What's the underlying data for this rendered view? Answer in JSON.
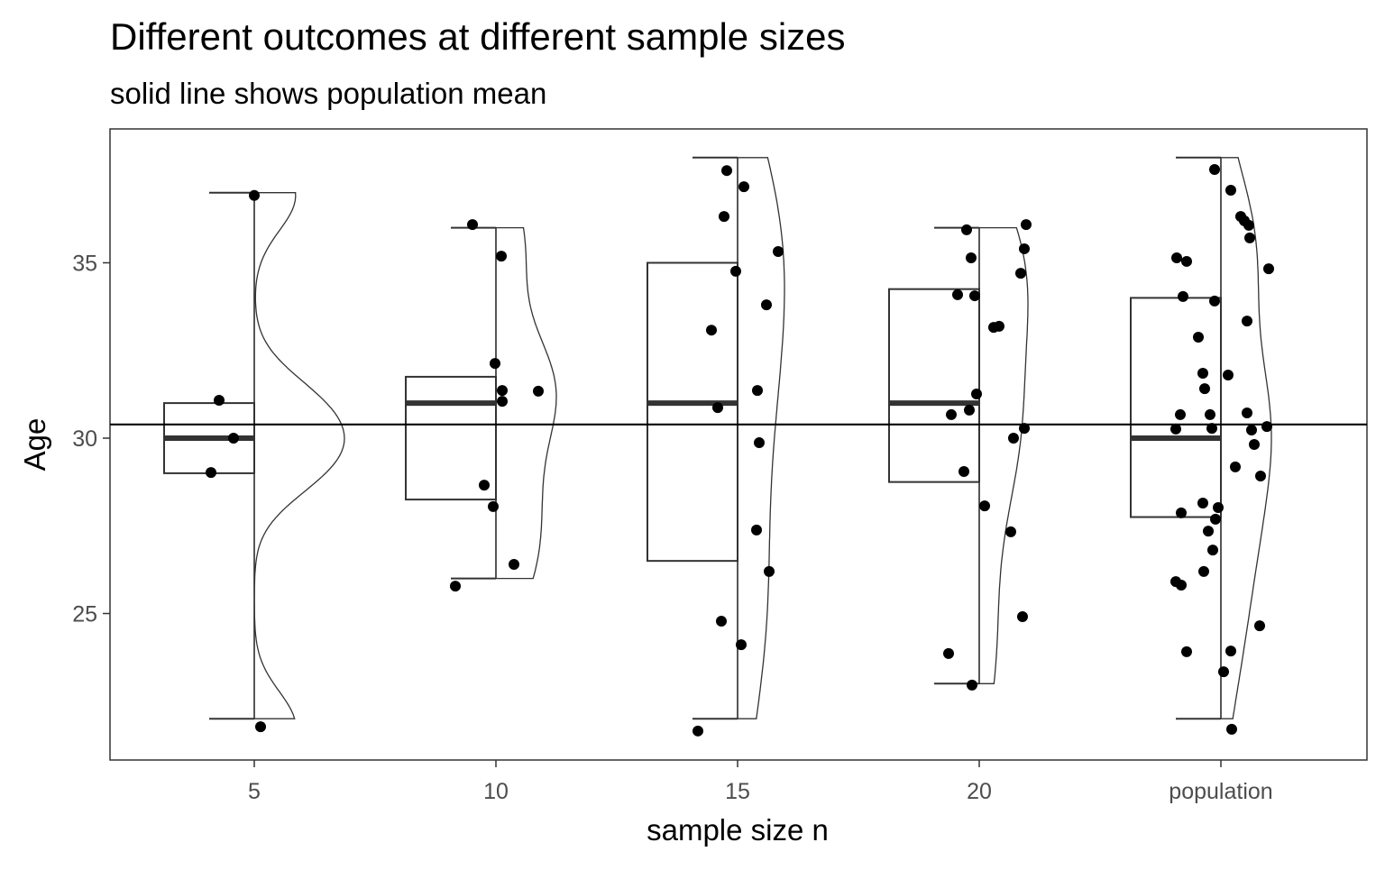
{
  "chart_data": {
    "type": "raincloud",
    "title": "Different outcomes at different sample sizes",
    "subtitle": "solid line shows population mean",
    "xlabel": "sample size n",
    "ylabel": "Age",
    "ylim": [
      20.75,
      38.75
    ],
    "yticks": [
      25,
      30,
      35
    ],
    "ytick_labels": [
      "25",
      "30",
      "35"
    ],
    "categories": [
      "5",
      "10",
      "15",
      "20",
      "population"
    ],
    "population_mean": 30.39,
    "grid": false,
    "boxes": [
      {
        "q1": 29.0,
        "median": 30.0,
        "q3": 31.0,
        "lower": 22.0,
        "upper": 37.0
      },
      {
        "q1": 28.25,
        "median": 31.0,
        "q3": 31.75,
        "lower": 26.0,
        "upper": 36.0
      },
      {
        "q1": 26.5,
        "median": 31.0,
        "q3": 35.0,
        "lower": 22.0,
        "upper": 38.0
      },
      {
        "q1": 28.75,
        "median": 31.0,
        "q3": 34.25,
        "lower": 23.0,
        "upper": 36.0
      },
      {
        "q1": 27.75,
        "median": 30.0,
        "q3": 34.0,
        "lower": 22.0,
        "upper": 38.0
      }
    ],
    "points": [
      [
        31.08,
        30.0,
        29.02,
        36.92,
        21.77
      ],
      [
        36.09,
        35.19,
        32.13,
        31.36,
        31.05,
        31.34,
        28.66,
        28.05,
        26.4,
        25.78
      ],
      [
        37.63,
        37.17,
        36.32,
        34.76,
        35.32,
        33.8,
        33.08,
        31.36,
        30.87,
        29.87,
        27.38,
        26.2,
        24.78,
        24.11,
        21.65
      ],
      [
        35.94,
        35.14,
        36.09,
        35.4,
        34.7,
        34.09,
        34.06,
        33.16,
        33.19,
        31.26,
        30.67,
        30.8,
        30.28,
        30.0,
        29.05,
        28.07,
        27.33,
        24.91,
        23.86,
        22.96
      ],
      [
        37.66,
        37.07,
        36.32,
        36.2,
        36.07,
        35.71,
        35.14,
        35.04,
        34.83,
        34.04,
        33.91,
        33.34,
        32.88,
        31.85,
        31.8,
        31.41,
        30.67,
        30.67,
        30.72,
        30.26,
        30.28,
        30.23,
        30.33,
        29.82,
        29.18,
        28.92,
        28.15,
        28.02,
        27.87,
        27.69,
        27.35,
        26.81,
        26.2,
        25.91,
        25.81,
        24.65,
        23.91,
        23.93,
        23.34,
        21.7
      ]
    ],
    "jitter": [
      [
        -39,
        -23,
        -48,
        0,
        7
      ],
      [
        -26,
        6,
        -1,
        7,
        7,
        47,
        -13,
        -3,
        20,
        -45
      ],
      [
        -12,
        7,
        -15,
        -2,
        45,
        32,
        -29,
        22,
        -22,
        24,
        21,
        35,
        -18,
        4,
        -44
      ],
      [
        -14,
        -9,
        52,
        50,
        46,
        -24,
        -5,
        16,
        22,
        -3,
        -31,
        -11,
        50,
        38,
        -17,
        6,
        35,
        48,
        -34,
        -8
      ],
      [
        -7,
        11,
        22,
        26,
        31,
        32,
        -49,
        -38,
        53,
        -42,
        -7,
        29,
        -25,
        -20,
        8,
        -18,
        -45,
        -12,
        29,
        -50,
        -10,
        34,
        51,
        37,
        16,
        44,
        -20,
        -3,
        -44,
        -6,
        -14,
        -9,
        -19,
        -50,
        -44,
        43,
        -38,
        11,
        3,
        12
      ]
    ]
  }
}
